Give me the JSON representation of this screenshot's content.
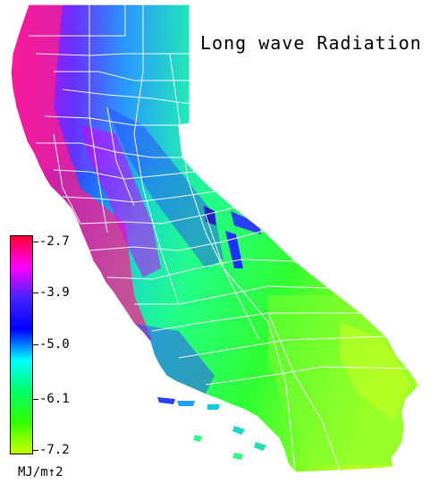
{
  "title": "Long wave Radiation",
  "legend": {
    "labels": [
      "-2.7",
      "-3.9",
      "-5.0",
      "-6.1",
      "-7.2"
    ],
    "unit": "MJ/m↑2",
    "colors": [
      "#ff0033",
      "#ff00ff",
      "#4422ff",
      "#0000ff",
      "#00ffff",
      "#00ff66",
      "#33ff00",
      "#ccff00"
    ]
  },
  "colors": {
    "background": "#ffffff",
    "county_lines": "#ffffff",
    "text": "#000000"
  }
}
